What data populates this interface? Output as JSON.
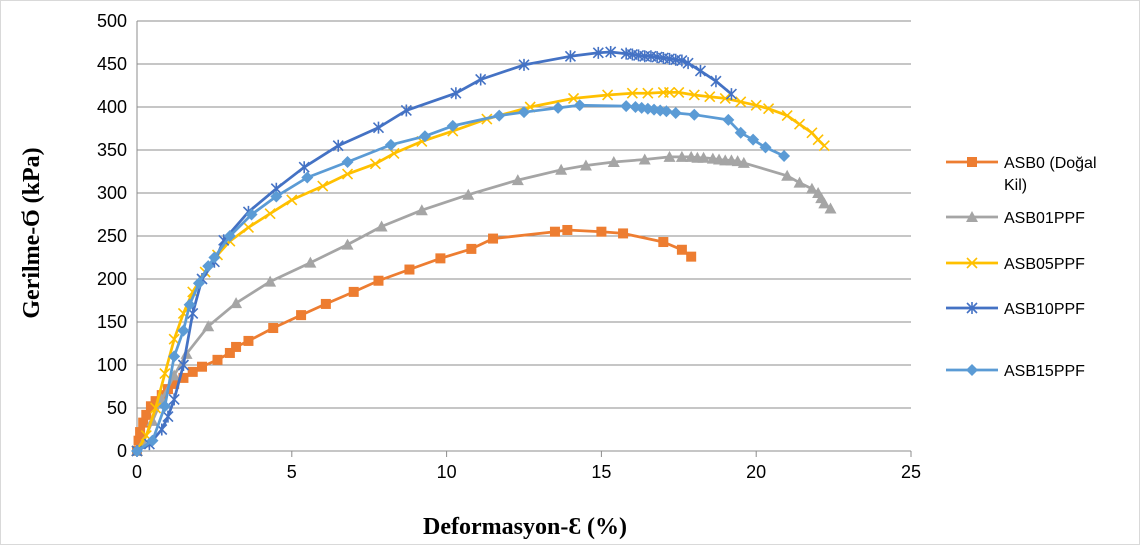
{
  "chart_data": {
    "type": "scatter",
    "title": "",
    "xlabel": "Deformasyon-Ɛ (%)",
    "ylabel": "Gerilme-Ϭ (kPa)",
    "xlim": [
      0,
      25
    ],
    "ylim": [
      0,
      500
    ],
    "xticks": [
      "0",
      "5",
      "10",
      "15",
      "20",
      "25"
    ],
    "yticks": [
      "0",
      "50",
      "100",
      "150",
      "200",
      "250",
      "300",
      "350",
      "400",
      "450",
      "500"
    ],
    "grid": "horizontal",
    "legend_position": "right",
    "series": [
      {
        "name": "ASB0 (Doğal Kil)",
        "legend_lines": [
          "ASB0 (Doğal",
          "Kil)"
        ],
        "color": "#ED7D31",
        "marker": "square",
        "points": [
          [
            0,
            0
          ],
          [
            0.05,
            12
          ],
          [
            0.1,
            22
          ],
          [
            0.2,
            33
          ],
          [
            0.3,
            42
          ],
          [
            0.45,
            52
          ],
          [
            0.6,
            58
          ],
          [
            0.8,
            65
          ],
          [
            1.0,
            72
          ],
          [
            1.2,
            78
          ],
          [
            1.5,
            85
          ],
          [
            1.8,
            92
          ],
          [
            2.1,
            98
          ],
          [
            2.6,
            106
          ],
          [
            3.0,
            114
          ],
          [
            3.2,
            121
          ],
          [
            3.6,
            128
          ],
          [
            4.4,
            143
          ],
          [
            5.3,
            158
          ],
          [
            6.1,
            171
          ],
          [
            7.0,
            185
          ],
          [
            7.8,
            198
          ],
          [
            8.8,
            211
          ],
          [
            9.8,
            224
          ],
          [
            10.8,
            235
          ],
          [
            11.5,
            247
          ],
          [
            13.5,
            255
          ],
          [
            13.9,
            257
          ],
          [
            15.0,
            255
          ],
          [
            15.7,
            253
          ],
          [
            17.0,
            243
          ],
          [
            17.6,
            234
          ],
          [
            17.9,
            226
          ]
        ]
      },
      {
        "name": "ASB01PPF",
        "legend_lines": [
          "ASB01PPF"
        ],
        "color": "#A5A5A5",
        "marker": "triangle",
        "points": [
          [
            0,
            0
          ],
          [
            0.2,
            10
          ],
          [
            0.5,
            35
          ],
          [
            0.8,
            60
          ],
          [
            1.2,
            88
          ],
          [
            1.6,
            113
          ],
          [
            2.3,
            145
          ],
          [
            3.2,
            172
          ],
          [
            4.3,
            197
          ],
          [
            5.6,
            219
          ],
          [
            6.8,
            240
          ],
          [
            7.9,
            261
          ],
          [
            9.2,
            280
          ],
          [
            10.7,
            298
          ],
          [
            12.3,
            315
          ],
          [
            13.7,
            327
          ],
          [
            14.5,
            332
          ],
          [
            15.4,
            336
          ],
          [
            16.4,
            339
          ],
          [
            17.2,
            342
          ],
          [
            17.6,
            342
          ],
          [
            17.9,
            342
          ],
          [
            18.1,
            341
          ],
          [
            18.3,
            341
          ],
          [
            18.6,
            340
          ],
          [
            18.8,
            339
          ],
          [
            19.0,
            338
          ],
          [
            19.2,
            338
          ],
          [
            19.4,
            337
          ],
          [
            19.6,
            335
          ],
          [
            21.0,
            320
          ],
          [
            21.4,
            312
          ],
          [
            21.8,
            305
          ],
          [
            22.0,
            300
          ],
          [
            22.1,
            294
          ],
          [
            22.2,
            288
          ],
          [
            22.4,
            282
          ]
        ]
      },
      {
        "name": "ASB05PPF",
        "legend_lines": [
          "ASB05PPF"
        ],
        "color": "#FFC000",
        "marker": "x",
        "points": [
          [
            0,
            0
          ],
          [
            0.3,
            18
          ],
          [
            0.6,
            50
          ],
          [
            0.9,
            90
          ],
          [
            1.2,
            130
          ],
          [
            1.5,
            160
          ],
          [
            1.8,
            185
          ],
          [
            2.2,
            208
          ],
          [
            2.6,
            228
          ],
          [
            3.0,
            244
          ],
          [
            3.6,
            260
          ],
          [
            4.3,
            276
          ],
          [
            5.0,
            292
          ],
          [
            6.0,
            308
          ],
          [
            6.8,
            322
          ],
          [
            7.7,
            334
          ],
          [
            8.3,
            346
          ],
          [
            9.2,
            360
          ],
          [
            10.2,
            372
          ],
          [
            11.3,
            386
          ],
          [
            12.7,
            400
          ],
          [
            14.1,
            410
          ],
          [
            15.2,
            414
          ],
          [
            16.0,
            416
          ],
          [
            16.5,
            416
          ],
          [
            17.0,
            417
          ],
          [
            17.2,
            417
          ],
          [
            17.5,
            417
          ],
          [
            18.0,
            414
          ],
          [
            18.5,
            412
          ],
          [
            19.0,
            410
          ],
          [
            19.5,
            406
          ],
          [
            20.0,
            402
          ],
          [
            20.4,
            398
          ],
          [
            21.0,
            390
          ],
          [
            21.4,
            380
          ],
          [
            21.8,
            370
          ],
          [
            22.0,
            362
          ],
          [
            22.2,
            355
          ]
        ]
      },
      {
        "name": "ASB10PPF",
        "legend_lines": [
          "ASB10PPF"
        ],
        "color": "#4472C4",
        "marker": "star",
        "points": [
          [
            0,
            0
          ],
          [
            0.4,
            8
          ],
          [
            0.8,
            25
          ],
          [
            1.0,
            40
          ],
          [
            1.2,
            60
          ],
          [
            1.5,
            100
          ],
          [
            1.8,
            160
          ],
          [
            2.1,
            200
          ],
          [
            2.5,
            220
          ],
          [
            2.8,
            245
          ],
          [
            3.6,
            278
          ],
          [
            4.5,
            305
          ],
          [
            5.4,
            330
          ],
          [
            6.5,
            355
          ],
          [
            7.8,
            376
          ],
          [
            8.7,
            396
          ],
          [
            10.3,
            416
          ],
          [
            11.1,
            432
          ],
          [
            12.5,
            449
          ],
          [
            14.0,
            459
          ],
          [
            14.9,
            463
          ],
          [
            15.3,
            464
          ],
          [
            15.8,
            462
          ],
          [
            16.0,
            461
          ],
          [
            16.2,
            460
          ],
          [
            16.4,
            459
          ],
          [
            16.6,
            459
          ],
          [
            16.8,
            458
          ],
          [
            17.0,
            457
          ],
          [
            17.2,
            456
          ],
          [
            17.4,
            455
          ],
          [
            17.6,
            454
          ],
          [
            17.8,
            451
          ],
          [
            18.2,
            442
          ],
          [
            18.7,
            430
          ],
          [
            19.2,
            415
          ]
        ]
      },
      {
        "name": "ASB15PPF",
        "legend_lines": [
          "ASB15PPF"
        ],
        "color": "#5B9BD5",
        "marker": "diamond",
        "points": [
          [
            0,
            0
          ],
          [
            0.5,
            12
          ],
          [
            0.9,
            52
          ],
          [
            1.2,
            110
          ],
          [
            1.5,
            140
          ],
          [
            1.7,
            170
          ],
          [
            2.0,
            195
          ],
          [
            2.3,
            215
          ],
          [
            2.5,
            225
          ],
          [
            3.0,
            250
          ],
          [
            3.7,
            275
          ],
          [
            4.5,
            296
          ],
          [
            5.5,
            318
          ],
          [
            6.8,
            336
          ],
          [
            8.2,
            356
          ],
          [
            9.3,
            366
          ],
          [
            10.2,
            378
          ],
          [
            11.7,
            390
          ],
          [
            12.5,
            394
          ],
          [
            13.6,
            399
          ],
          [
            14.3,
            402
          ],
          [
            15.8,
            401
          ],
          [
            16.1,
            400
          ],
          [
            16.3,
            399
          ],
          [
            16.5,
            398
          ],
          [
            16.7,
            397
          ],
          [
            16.9,
            396
          ],
          [
            17.1,
            395
          ],
          [
            17.4,
            393
          ],
          [
            18.0,
            391
          ],
          [
            19.1,
            385
          ],
          [
            19.5,
            370
          ],
          [
            19.9,
            362
          ],
          [
            20.3,
            353
          ],
          [
            20.9,
            343
          ]
        ]
      }
    ]
  }
}
